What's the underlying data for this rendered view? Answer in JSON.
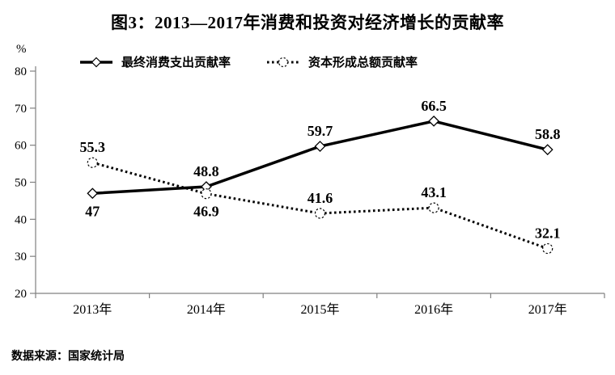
{
  "title": "图3：2013—2017年消费和投资对经济增长的贡献率",
  "y_unit_label": "%",
  "source": "数据来源：国家统计局",
  "colors": {
    "series": "#000000",
    "axis": "#808080",
    "text": "#000000",
    "background": "#ffffff"
  },
  "chart_data": {
    "type": "line",
    "categories": [
      "2013年",
      "2014年",
      "2015年",
      "2016年",
      "2017年"
    ],
    "series": [
      {
        "name": "最终消费支出贡献率",
        "line": "solid",
        "marker": "diamond",
        "values": [
          47,
          48.8,
          59.7,
          66.5,
          58.8
        ],
        "labels": [
          "47",
          "48.8",
          "59.7",
          "66.5",
          "58.8"
        ],
        "label_positions": [
          "below",
          "above",
          "above",
          "above",
          "above"
        ]
      },
      {
        "name": "资本形成总额贡献率",
        "line": "dotted",
        "marker": "circle",
        "values": [
          55.3,
          46.9,
          41.6,
          43.1,
          32.1
        ],
        "labels": [
          "55.3",
          "46.9",
          "41.6",
          "43.1",
          "32.1"
        ],
        "label_positions": [
          "above",
          "below",
          "above",
          "above",
          "above"
        ]
      }
    ],
    "ylim": [
      20,
      80
    ],
    "yticks": [
      20,
      30,
      40,
      50,
      60,
      70,
      80
    ],
    "grid": false,
    "legend_position": "top"
  }
}
